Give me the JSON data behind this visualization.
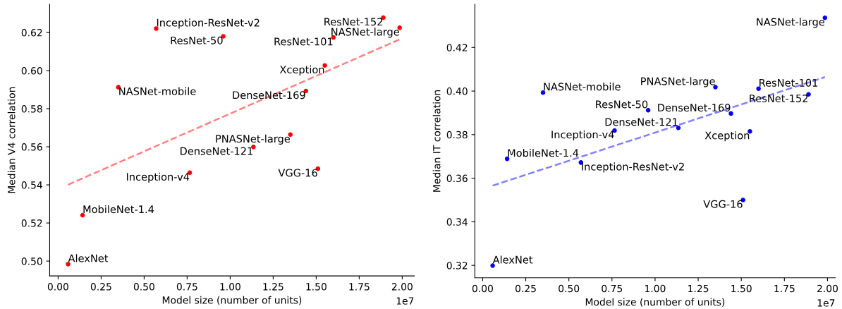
{
  "chart_data": [
    {
      "type": "scatter",
      "xlabel": "Model size (number of units)",
      "ylabel": "Median V4 correlation",
      "xlim": [
        -0.049,
        2.07
      ],
      "ylim": [
        0.4922,
        0.6348
      ],
      "xticks": [
        {
          "value": 0,
          "label": "0.00"
        },
        {
          "value": 0.25,
          "label": "0.25"
        },
        {
          "value": 0.5,
          "label": "0.50"
        },
        {
          "value": 0.75,
          "label": "0.75"
        },
        {
          "value": 1,
          "label": "1.00"
        },
        {
          "value": 1.25,
          "label": "1.25"
        },
        {
          "value": 1.5,
          "label": "1.50"
        },
        {
          "value": 1.75,
          "label": "1.75"
        },
        {
          "value": 2,
          "label": "2.00"
        }
      ],
      "yticks": [
        {
          "value": 0.5,
          "label": "0.50"
        },
        {
          "value": 0.52,
          "label": "0.52"
        },
        {
          "value": 0.54,
          "label": "0.54"
        },
        {
          "value": 0.56,
          "label": "0.56"
        },
        {
          "value": 0.58,
          "label": "0.58"
        },
        {
          "value": 0.6,
          "label": "0.60"
        },
        {
          "value": 0.62,
          "label": "0.62"
        }
      ],
      "grid": false,
      "legend": false,
      "series": [
        {
          "marker": "circle",
          "color": "#ff0000",
          "x": [
            0.058,
            0.142,
            0.35,
            0.57,
            0.96,
            0.765,
            1.135,
            1.35,
            1.44,
            1.55,
            1.51,
            1.6,
            1.89,
            1.985
          ],
          "values": [
            0.4984,
            0.5241,
            0.5913,
            0.6221,
            0.618,
            0.5464,
            0.5599,
            0.5664,
            0.5893,
            0.6027,
            0.5485,
            0.6174,
            0.6278,
            0.6225
          ]
        },
        {
          "type": "line",
          "color": "#ff8080",
          "line_style": "dashed",
          "x": [
            0.058,
            1.985
          ],
          "values": [
            0.5401,
            0.6164
          ]
        }
      ],
      "annotations": [
        {
          "text": "AlexNet",
          "x": 0.058,
          "y": 0.4984
        },
        {
          "text": "MobileNet-1.4",
          "x": 0.142,
          "y": 0.5241
        },
        {
          "text": "NASNet-mobile",
          "x": 0.35,
          "y": 0.5913
        },
        {
          "text": "Inception-ResNet-v2",
          "x": 0.57,
          "y": 0.6221
        },
        {
          "text": "ResNet-50",
          "x": 0.96,
          "y": 0.618
        },
        {
          "text": "Inception-v4",
          "x": 0.765,
          "y": 0.5464
        },
        {
          "text": "DenseNet-121",
          "x": 1.135,
          "y": 0.5599
        },
        {
          "text": "PNASNet-large",
          "x": 1.35,
          "y": 0.5664
        },
        {
          "text": "DenseNet-169",
          "x": 1.44,
          "y": 0.5893
        },
        {
          "text": "Xception",
          "x": 1.55,
          "y": 0.6027
        },
        {
          "text": "VGG-16",
          "x": 1.51,
          "y": 0.5485
        },
        {
          "text": "ResNet-101",
          "x": 1.6,
          "y": 0.6174
        },
        {
          "text": "ResNet-152",
          "x": 1.89,
          "y": 0.6278
        },
        {
          "text": "NASNet-large",
          "x": 1.985,
          "y": 0.6225
        },
        "1e7"
      ]
    },
    {
      "type": "scatter",
      "xlabel": "Model size (number of units)",
      "ylabel": "Median IT correlation",
      "xlim": [
        -0.045,
        2.045
      ],
      "ylim": [
        0.3143,
        0.4398
      ],
      "xticks": [
        {
          "value": 0,
          "label": "0.00"
        },
        {
          "value": 0.25,
          "label": "0.25"
        },
        {
          "value": 0.5,
          "label": "0.50"
        },
        {
          "value": 0.75,
          "label": "0.75"
        },
        {
          "value": 1,
          "label": "1.00"
        },
        {
          "value": 1.25,
          "label": "1.25"
        },
        {
          "value": 1.5,
          "label": "1.50"
        },
        {
          "value": 1.75,
          "label": "1.75"
        },
        {
          "value": 2,
          "label": "2.00"
        }
      ],
      "yticks": [
        {
          "value": 0.32,
          "label": "0.32"
        },
        {
          "value": 0.34,
          "label": "0.34"
        },
        {
          "value": 0.36,
          "label": "0.36"
        },
        {
          "value": 0.38,
          "label": "0.38"
        },
        {
          "value": 0.4,
          "label": "0.40"
        },
        {
          "value": 0.42,
          "label": "0.42"
        }
      ],
      "grid": false,
      "legend": false,
      "series": [
        {
          "marker": "circle",
          "color": "#0000ff",
          "x": [
            0.058,
            0.142,
            0.35,
            0.57,
            0.96,
            0.765,
            1.135,
            1.35,
            1.44,
            1.55,
            1.51,
            1.6,
            1.89,
            1.985
          ],
          "values": [
            0.3199,
            0.3689,
            0.3993,
            0.3672,
            0.3912,
            0.3819,
            0.3831,
            0.4018,
            0.3897,
            0.3815,
            0.35,
            0.4011,
            0.3985,
            0.4336
          ]
        },
        {
          "type": "line",
          "color": "#8080ff",
          "line_style": "dashed",
          "x": [
            0.058,
            1.985
          ],
          "values": [
            0.3566,
            0.4064
          ]
        }
      ],
      "annotations": [
        {
          "text": "AlexNet",
          "x": 0.058,
          "y": 0.3199
        },
        {
          "text": "MobileNet-1.4",
          "x": 0.142,
          "y": 0.3689
        },
        {
          "text": "NASNet-mobile",
          "x": 0.35,
          "y": 0.3993
        },
        {
          "text": "Inception-ResNet-v2",
          "x": 0.57,
          "y": 0.3672
        },
        {
          "text": "ResNet-50",
          "x": 0.96,
          "y": 0.3912
        },
        {
          "text": "Inception-v4",
          "x": 0.765,
          "y": 0.3819
        },
        {
          "text": "DenseNet-121",
          "x": 1.135,
          "y": 0.3831
        },
        {
          "text": "PNASNet-large",
          "x": 1.35,
          "y": 0.4018
        },
        {
          "text": "DenseNet-169",
          "x": 1.44,
          "y": 0.3897
        },
        {
          "text": "Xception",
          "x": 1.55,
          "y": 0.3815
        },
        {
          "text": "VGG-16",
          "x": 1.51,
          "y": 0.35
        },
        {
          "text": "ResNet-101",
          "x": 1.6,
          "y": 0.4011
        },
        {
          "text": "ResNet-152",
          "x": 1.89,
          "y": 0.3985
        },
        {
          "text": "NASNet-large",
          "x": 1.985,
          "y": 0.4336
        },
        "1e7"
      ]
    }
  ]
}
